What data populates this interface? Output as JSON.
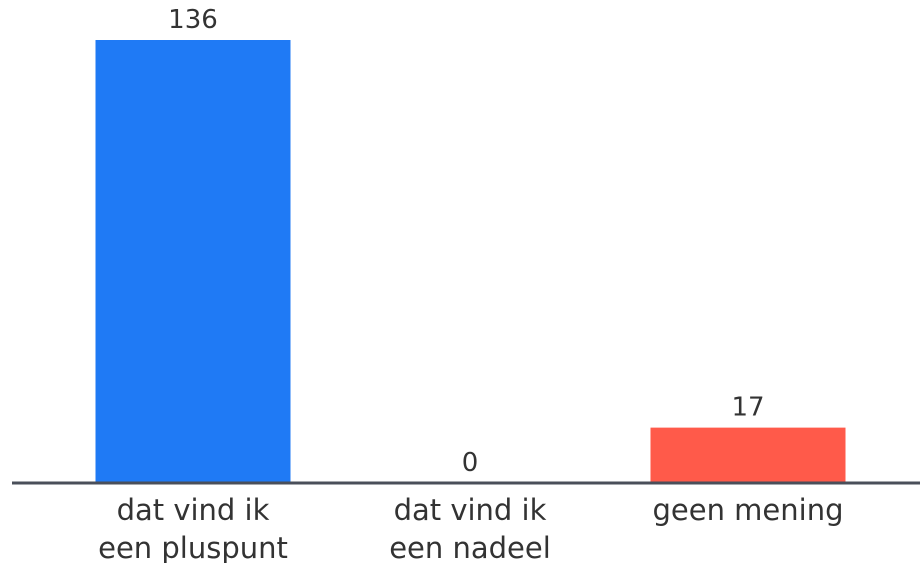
{
  "chart_data": {
    "type": "bar",
    "categories": [
      [
        "dat vind ik",
        "een pluspunt"
      ],
      [
        "dat vind ik",
        "een nadeel"
      ],
      [
        "geen mening"
      ]
    ],
    "values": [
      136,
      0,
      17
    ],
    "value_labels": [
      "136",
      "0",
      "17"
    ],
    "colors": [
      "#1f7af5",
      "#2b2b2b",
      "#ff5a4a"
    ],
    "axis_color": "#4a4f5a",
    "ylim": [
      0,
      136
    ],
    "grid": false,
    "legend": "none",
    "title": "",
    "xlabel": "",
    "ylabel": ""
  }
}
